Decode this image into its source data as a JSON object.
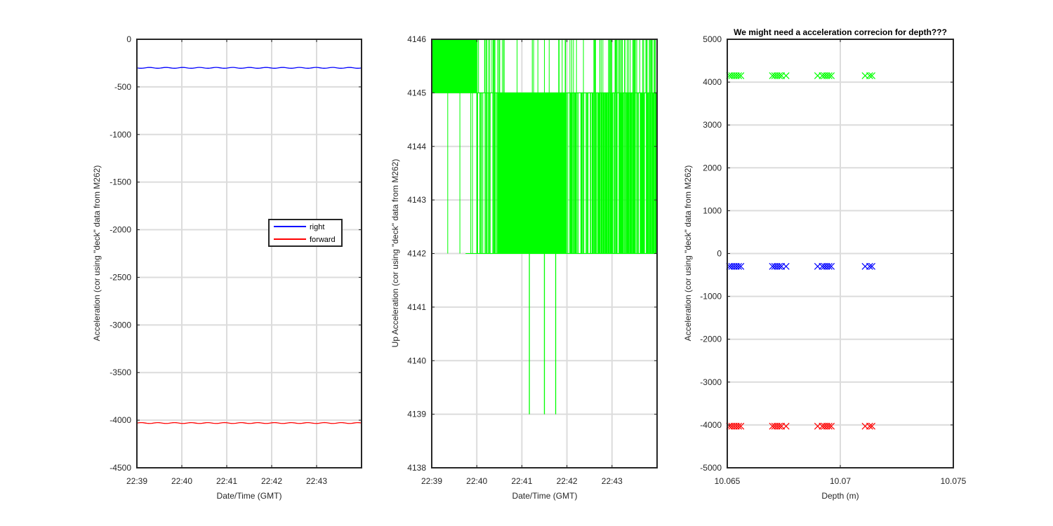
{
  "chart_data": [
    {
      "type": "line",
      "title": "",
      "xlabel": "Date/Time (GMT)",
      "ylabel": "Acceleration (cor using \"deck\" data from M262)",
      "xlim": [
        "22:39",
        "22:44"
      ],
      "ylim": [
        -4500,
        0
      ],
      "x_ticks": [
        "22:39",
        "22:40",
        "22:41",
        "22:42",
        "22:43"
      ],
      "y_ticks": [
        "-4500",
        "-4000",
        "-3500",
        "-3000",
        "-2500",
        "-2000",
        "-1500",
        "-1000",
        "-500",
        "0"
      ],
      "grid": true,
      "legend": "center-right",
      "series": [
        {
          "name": "right",
          "color": "#0000ff",
          "x": [
            "22:39",
            "22:44"
          ],
          "values": [
            -300,
            -300
          ]
        },
        {
          "name": "forward",
          "color": "#ff0000",
          "x": [
            "22:39",
            "22:44"
          ],
          "values": [
            -4030,
            -4030
          ]
        }
      ]
    },
    {
      "type": "line",
      "title": "",
      "xlabel": "Date/Time (GMT)",
      "ylabel": "Up Acceleration (cor using \"deck\" data from M262)",
      "xlim": [
        "22:39",
        "22:44"
      ],
      "ylim": [
        4138,
        4146
      ],
      "x_ticks": [
        "22:39",
        "22:40",
        "22:41",
        "22:42",
        "22:43"
      ],
      "y_ticks": [
        "4138",
        "4139",
        "4140",
        "4141",
        "4142",
        "4143",
        "4144",
        "4145",
        "4146"
      ],
      "grid": true,
      "series": [
        {
          "color": "#00ff00",
          "description": "samples flip between 4142, 4145 and 4146; dips to 4139 near 22:41:10, 22:41:30, 22:41:45",
          "levels": [
            4142,
            4145,
            4146
          ],
          "dips": {
            "x": [
              "22:41:10",
              "22:41:30",
              "22:41:45"
            ],
            "values": [
              4139,
              4139,
              4139
            ]
          }
        }
      ]
    },
    {
      "type": "scatter",
      "title": "We might need a acceleration correcion for depth???",
      "xlabel": "Depth (m)",
      "ylabel": "Acceleration (cor using \"deck\" data from M262)",
      "xlim": [
        10.065,
        10.075
      ],
      "ylim": [
        -5000,
        5000
      ],
      "x_ticks": [
        "10.065",
        "10.07",
        "10.075"
      ],
      "y_ticks": [
        "-5000",
        "-4000",
        "-3000",
        "-2000",
        "-1000",
        "0",
        "1000",
        "2000",
        "3000",
        "4000",
        "5000"
      ],
      "grid": true,
      "marker": "x",
      "x": [
        10.0651,
        10.0652,
        10.0653,
        10.0654,
        10.0655,
        10.0656,
        10.067,
        10.0671,
        10.0672,
        10.0673,
        10.0674,
        10.0676,
        10.069,
        10.0692,
        10.0693,
        10.0694,
        10.0695,
        10.0696,
        10.0711,
        10.0713,
        10.0714
      ],
      "series": [
        {
          "color": "#00ff00",
          "values": [
            4150,
            4150,
            4150,
            4150,
            4150,
            4150,
            4150,
            4150,
            4150,
            4150,
            4150,
            4150,
            4150,
            4150,
            4150,
            4150,
            4150,
            4150,
            4150,
            4150,
            4150
          ]
        },
        {
          "color": "#0000ff",
          "values": [
            -300,
            -300,
            -300,
            -300,
            -300,
            -300,
            -300,
            -300,
            -300,
            -300,
            -300,
            -300,
            -300,
            -300,
            -300,
            -300,
            -300,
            -300,
            -300,
            -300,
            -300
          ]
        },
        {
          "color": "#ff0000",
          "values": [
            -4030,
            -4030,
            -4030,
            -4030,
            -4030,
            -4030,
            -4030,
            -4030,
            -4030,
            -4030,
            -4030,
            -4030,
            -4030,
            -4030,
            -4030,
            -4030,
            -4030,
            -4030,
            -4030,
            -4030,
            -4030
          ]
        }
      ]
    }
  ]
}
